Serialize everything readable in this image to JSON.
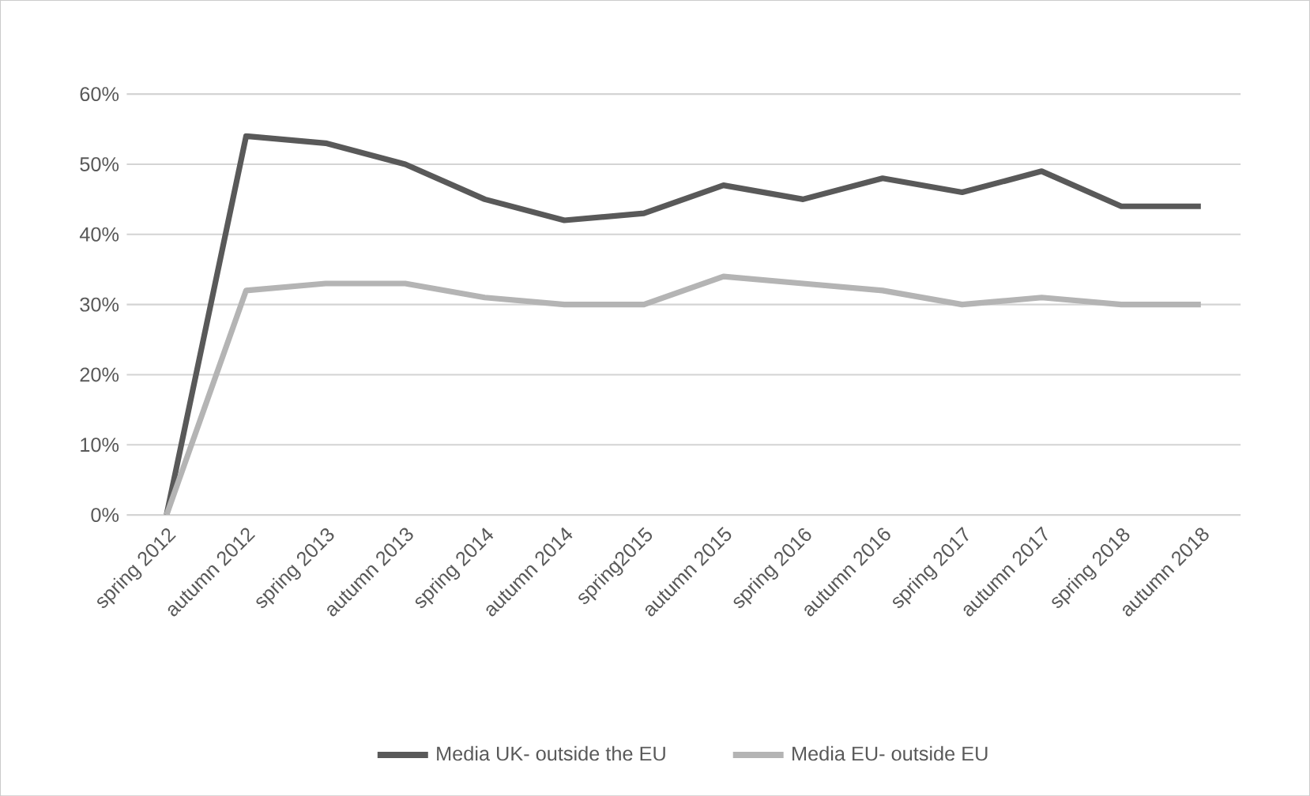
{
  "chart_data": {
    "type": "line",
    "categories": [
      "spring 2012",
      "autumn 2012",
      "spring 2013",
      "autumn 2013",
      "spring 2014",
      "autumn 2014",
      "spring2015",
      "autumn 2015",
      "spring 2016",
      "autumn 2016",
      "spring 2017",
      "autumn 2017",
      "spring 2018",
      "autumn 2018"
    ],
    "series": [
      {
        "name": "Media UK- outside the EU",
        "color": "#595959",
        "values": [
          0,
          54,
          53,
          50,
          45,
          42,
          43,
          47,
          45,
          48,
          46,
          49,
          44,
          44
        ]
      },
      {
        "name": "Media EU- outside EU",
        "color": "#b4b4b4",
        "values": [
          0,
          32,
          33,
          33,
          31,
          30,
          30,
          34,
          33,
          32,
          30,
          31,
          30,
          30
        ]
      }
    ],
    "ylim": [
      0,
      60
    ],
    "yticks": [
      {
        "value": 0,
        "label": "0%"
      },
      {
        "value": 10,
        "label": "10%"
      },
      {
        "value": 20,
        "label": "20%"
      },
      {
        "value": 30,
        "label": "30%"
      },
      {
        "value": 40,
        "label": "40%"
      },
      {
        "value": 50,
        "label": "50%"
      },
      {
        "value": 60,
        "label": "60%"
      }
    ],
    "grid": "y",
    "legend": "bottom",
    "marker": "none",
    "line_style": "solid"
  }
}
